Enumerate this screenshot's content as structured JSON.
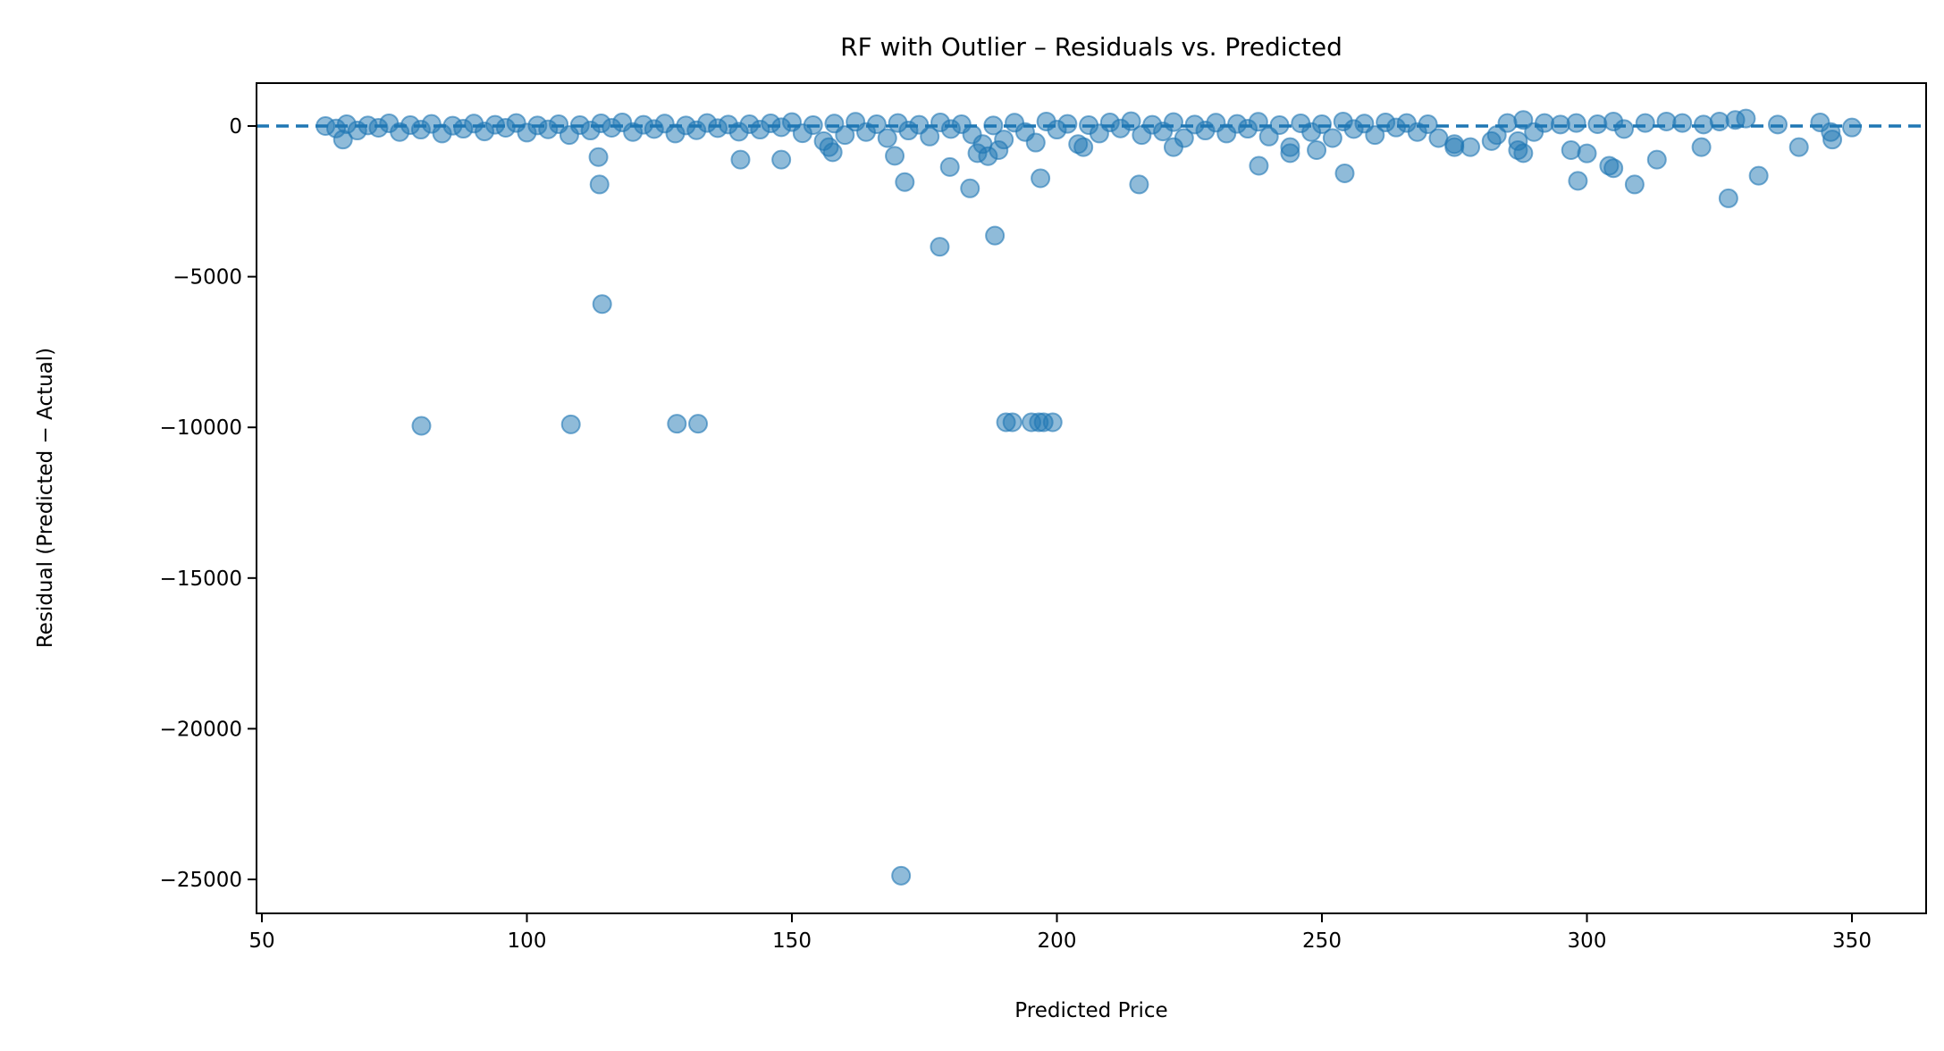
{
  "chart_data": {
    "type": "scatter",
    "title": "RF with Outlier – Residuals vs. Predicted",
    "xlabel": "Predicted Price",
    "ylabel": "Residual (Predicted − Actual)",
    "xlim": [
      48.5,
      365
    ],
    "ylim": [
      -26000,
      1400
    ],
    "xticks": [
      50,
      100,
      150,
      200,
      250,
      300,
      350
    ],
    "yticks": [
      0,
      -5000,
      -10000,
      -15000,
      -20000,
      -25000
    ],
    "xtick_labels": [
      "50",
      "100",
      "150",
      "200",
      "250",
      "300",
      "350"
    ],
    "ytick_labels": [
      "0",
      "−5000",
      "−10000",
      "−15000",
      "−20000",
      "−25000"
    ],
    "grid": false,
    "reference_line": {
      "y": 0,
      "style": "dashed"
    },
    "colors": {
      "points": "#1f77b4",
      "reference_line": "#1f77b4"
    },
    "point_alpha": 0.5,
    "points": [
      [
        62,
        0
      ],
      [
        64,
        -80
      ],
      [
        66,
        60
      ],
      [
        68,
        -150
      ],
      [
        70,
        20
      ],
      [
        72,
        -60
      ],
      [
        74,
        90
      ],
      [
        76,
        -200
      ],
      [
        78,
        30
      ],
      [
        80,
        -120
      ],
      [
        82,
        70
      ],
      [
        84,
        -250
      ],
      [
        86,
        10
      ],
      [
        88,
        -90
      ],
      [
        90,
        80
      ],
      [
        92,
        -180
      ],
      [
        94,
        40
      ],
      [
        96,
        -60
      ],
      [
        98,
        100
      ],
      [
        100,
        -220
      ],
      [
        102,
        20
      ],
      [
        104,
        -110
      ],
      [
        106,
        60
      ],
      [
        108,
        -300
      ],
      [
        110,
        30
      ],
      [
        112,
        -150
      ],
      [
        114,
        90
      ],
      [
        116,
        -60
      ],
      [
        118,
        120
      ],
      [
        120,
        -200
      ],
      [
        122,
        40
      ],
      [
        124,
        -100
      ],
      [
        126,
        80
      ],
      [
        128,
        -250
      ],
      [
        130,
        20
      ],
      [
        132,
        -140
      ],
      [
        134,
        100
      ],
      [
        136,
        -70
      ],
      [
        138,
        50
      ],
      [
        140,
        -190
      ],
      [
        142,
        60
      ],
      [
        144,
        -120
      ],
      [
        146,
        90
      ],
      [
        148,
        -40
      ],
      [
        150,
        130
      ],
      [
        152,
        -240
      ],
      [
        154,
        30
      ],
      [
        156,
        -500
      ],
      [
        158,
        80
      ],
      [
        160,
        -300
      ],
      [
        162,
        140
      ],
      [
        164,
        -200
      ],
      [
        166,
        60
      ],
      [
        168,
        -400
      ],
      [
        170,
        100
      ],
      [
        172,
        -150
      ],
      [
        174,
        40
      ],
      [
        176,
        -350
      ],
      [
        178,
        120
      ],
      [
        180,
        -100
      ],
      [
        182,
        60
      ],
      [
        184,
        -280
      ],
      [
        186,
        -600
      ],
      [
        188,
        20
      ],
      [
        190,
        -450
      ],
      [
        192,
        110
      ],
      [
        194,
        -200
      ],
      [
        196,
        -550
      ],
      [
        198,
        150
      ],
      [
        200,
        -120
      ],
      [
        202,
        70
      ],
      [
        204,
        -600
      ],
      [
        206,
        30
      ],
      [
        208,
        -250
      ],
      [
        210,
        120
      ],
      [
        212,
        -80
      ],
      [
        214,
        160
      ],
      [
        216,
        -300
      ],
      [
        218,
        40
      ],
      [
        220,
        -180
      ],
      [
        222,
        130
      ],
      [
        224,
        -400
      ],
      [
        226,
        50
      ],
      [
        228,
        -150
      ],
      [
        230,
        110
      ],
      [
        232,
        -250
      ],
      [
        234,
        70
      ],
      [
        236,
        -90
      ],
      [
        238,
        140
      ],
      [
        240,
        -350
      ],
      [
        242,
        30
      ],
      [
        244,
        -700
      ],
      [
        246,
        90
      ],
      [
        248,
        -200
      ],
      [
        250,
        60
      ],
      [
        252,
        -400
      ],
      [
        254,
        150
      ],
      [
        256,
        -100
      ],
      [
        258,
        80
      ],
      [
        260,
        -300
      ],
      [
        262,
        120
      ],
      [
        264,
        -50
      ],
      [
        266,
        100
      ],
      [
        268,
        -200
      ],
      [
        270,
        60
      ],
      [
        272,
        -400
      ],
      [
        275,
        -600
      ],
      [
        278,
        -700
      ],
      [
        283,
        -300
      ],
      [
        285,
        100
      ],
      [
        287,
        -500
      ],
      [
        288,
        200
      ],
      [
        290,
        -200
      ],
      [
        292,
        100
      ],
      [
        295,
        50
      ],
      [
        298,
        100
      ],
      [
        302,
        60
      ],
      [
        305,
        150
      ],
      [
        307,
        -100
      ],
      [
        311,
        100
      ],
      [
        315,
        150
      ],
      [
        318,
        100
      ],
      [
        322,
        50
      ],
      [
        325,
        150
      ],
      [
        328,
        200
      ],
      [
        330,
        250
      ],
      [
        336,
        50
      ],
      [
        344,
        120
      ],
      [
        346,
        -200
      ],
      [
        350,
        -50
      ],
      [
        288,
        -900
      ],
      [
        297,
        -800
      ],
      [
        65.3,
        -450
      ],
      [
        157.7,
        -870
      ],
      [
        157,
        -700
      ],
      [
        185,
        -900
      ],
      [
        187,
        -1000
      ],
      [
        189,
        -800
      ],
      [
        205,
        -700
      ],
      [
        222,
        -700
      ],
      [
        244,
        -900
      ],
      [
        249,
        -800
      ],
      [
        275,
        -700
      ],
      [
        282,
        -500
      ],
      [
        287,
        -800
      ],
      [
        321.6,
        -700
      ],
      [
        340,
        -700
      ],
      [
        346.3,
        -450
      ],
      [
        113.5,
        -1030
      ],
      [
        113.7,
        -1940
      ],
      [
        140.3,
        -1115
      ],
      [
        148.0,
        -1115
      ],
      [
        169.4,
        -990
      ],
      [
        171.3,
        -1860
      ],
      [
        179.8,
        -1360
      ],
      [
        183.6,
        -2070
      ],
      [
        196.9,
        -1735
      ],
      [
        215.5,
        -1940
      ],
      [
        238.1,
        -1320
      ],
      [
        254.3,
        -1570
      ],
      [
        298.3,
        -1820
      ],
      [
        300.0,
        -910
      ],
      [
        304.2,
        -1320
      ],
      [
        305,
        -1400
      ],
      [
        309.0,
        -1940
      ],
      [
        313.2,
        -1115
      ],
      [
        326.7,
        -2400
      ],
      [
        332.4,
        -1650
      ],
      [
        114.2,
        -5909
      ],
      [
        177.9,
        -4008
      ],
      [
        188.3,
        -3636
      ],
      [
        80.1,
        -9950
      ],
      [
        108.3,
        -9900
      ],
      [
        128.3,
        -9880
      ],
      [
        132.3,
        -9880
      ],
      [
        190.4,
        -9830
      ],
      [
        191.6,
        -9830
      ],
      [
        195.2,
        -9830
      ],
      [
        196.6,
        -9830
      ],
      [
        197.5,
        -9830
      ],
      [
        199.2,
        -9830
      ],
      [
        170.6,
        -24876
      ]
    ]
  }
}
